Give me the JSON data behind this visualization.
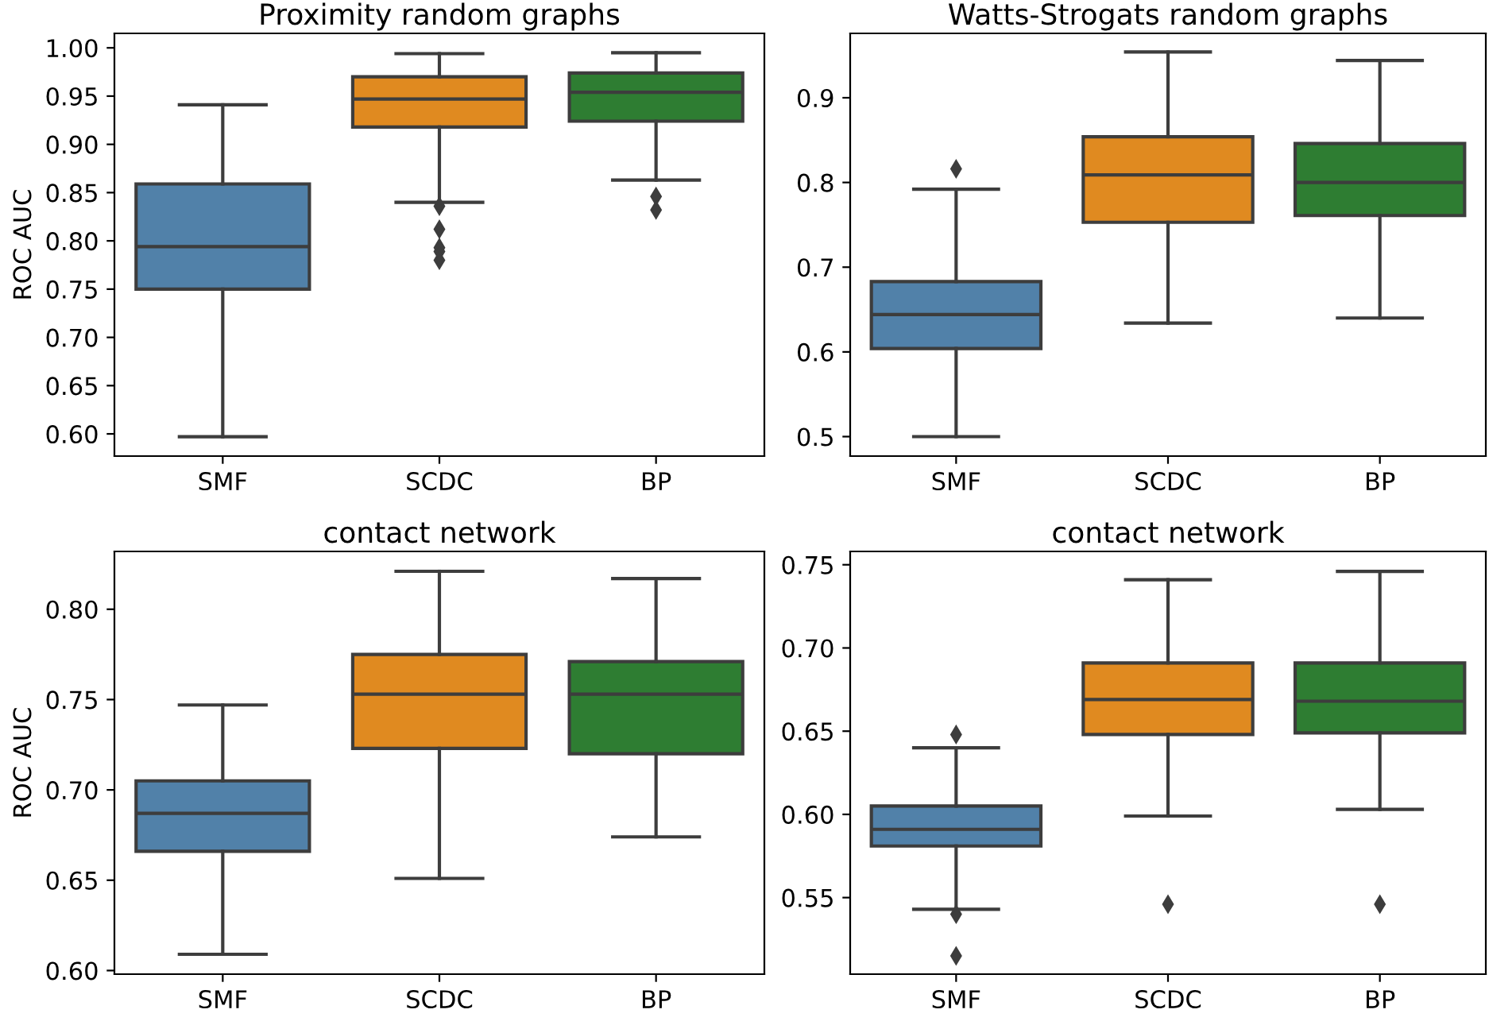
{
  "chart_data": [
    {
      "type": "box",
      "title": "Proximity random graphs",
      "ylabel": "ROC AUC",
      "categories": [
        "SMF",
        "SCDC",
        "BP"
      ],
      "colors": [
        "#5181a9",
        "#e08a20",
        "#2e7d32"
      ],
      "marker": "diamond",
      "boxes": [
        {
          "low": 0.597,
          "q1": 0.75,
          "median": 0.794,
          "q3": 0.859,
          "high": 0.941
        },
        {
          "low": 0.84,
          "q1": 0.918,
          "median": 0.947,
          "q3": 0.97,
          "high": 0.994,
          "outliers": [
            0.836,
            0.812,
            0.793,
            0.789,
            0.78
          ]
        },
        {
          "low": 0.863,
          "q1": 0.924,
          "median": 0.954,
          "q3": 0.974,
          "high": 0.995,
          "outliers": [
            0.846,
            0.832
          ]
        }
      ],
      "ylim": [
        0.577,
        1.015
      ],
      "yticks": [
        {
          "value": 0.6,
          "label": "0.60"
        },
        0.65,
        {
          "value": 0.7,
          "label": "0.70"
        },
        0.75,
        {
          "value": 0.8,
          "label": "0.80"
        },
        0.85,
        {
          "value": 0.9,
          "label": "0.90"
        },
        0.95,
        {
          "value": 1.0,
          "label": "1.00"
        }
      ]
    },
    {
      "type": "box",
      "title": "Watts-Strogats random graphs",
      "categories": [
        "SMF",
        "SCDC",
        "BP"
      ],
      "colors": [
        "#5181a9",
        "#e08a20",
        "#2e7d32"
      ],
      "marker": "diamond",
      "boxes": [
        {
          "low": 0.5,
          "q1": 0.604,
          "median": 0.644,
          "q3": 0.683,
          "high": 0.792,
          "outliers": [
            0.816
          ]
        },
        {
          "low": 0.634,
          "q1": 0.753,
          "median": 0.809,
          "q3": 0.854,
          "high": 0.954
        },
        {
          "low": 0.64,
          "q1": 0.761,
          "median": 0.8,
          "q3": 0.846,
          "high": 0.944
        }
      ],
      "ylim": [
        0.477,
        0.976
      ],
      "yticks": [
        0.5,
        0.6,
        0.7,
        0.8,
        0.9
      ]
    },
    {
      "type": "box",
      "title": "contact network",
      "ylabel": "ROC AUC",
      "categories": [
        "SMF",
        "SCDC",
        "BP"
      ],
      "colors": [
        "#5181a9",
        "#e08a20",
        "#2e7d32"
      ],
      "marker": "diamond",
      "boxes": [
        {
          "low": 0.609,
          "q1": 0.666,
          "median": 0.687,
          "q3": 0.705,
          "high": 0.747
        },
        {
          "low": 0.651,
          "q1": 0.723,
          "median": 0.753,
          "q3": 0.775,
          "high": 0.821
        },
        {
          "low": 0.674,
          "q1": 0.72,
          "median": 0.753,
          "q3": 0.771,
          "high": 0.817
        }
      ],
      "ylim": [
        0.598,
        0.832
      ],
      "yticks": [
        {
          "value": 0.6,
          "label": "0.60"
        },
        0.65,
        {
          "value": 0.7,
          "label": "0.70"
        },
        0.75,
        {
          "value": 0.8,
          "label": "0.80"
        }
      ]
    },
    {
      "type": "box",
      "title": "contact network",
      "categories": [
        "SMF",
        "SCDC",
        "BP"
      ],
      "colors": [
        "#5181a9",
        "#e08a20",
        "#2e7d32"
      ],
      "marker": "diamond",
      "boxes": [
        {
          "low": 0.543,
          "q1": 0.581,
          "median": 0.591,
          "q3": 0.605,
          "high": 0.64,
          "outliers": [
            0.648,
            0.54,
            0.515
          ]
        },
        {
          "low": 0.599,
          "q1": 0.648,
          "median": 0.669,
          "q3": 0.691,
          "high": 0.741,
          "outliers": [
            0.546
          ]
        },
        {
          "low": 0.603,
          "q1": 0.649,
          "median": 0.668,
          "q3": 0.691,
          "high": 0.746,
          "outliers": [
            0.546
          ]
        }
      ],
      "ylim": [
        0.504,
        0.758
      ],
      "yticks": [
        0.55,
        {
          "value": 0.6,
          "label": "0.60"
        },
        0.65,
        {
          "value": 0.7,
          "label": "0.70"
        },
        0.75
      ]
    }
  ]
}
